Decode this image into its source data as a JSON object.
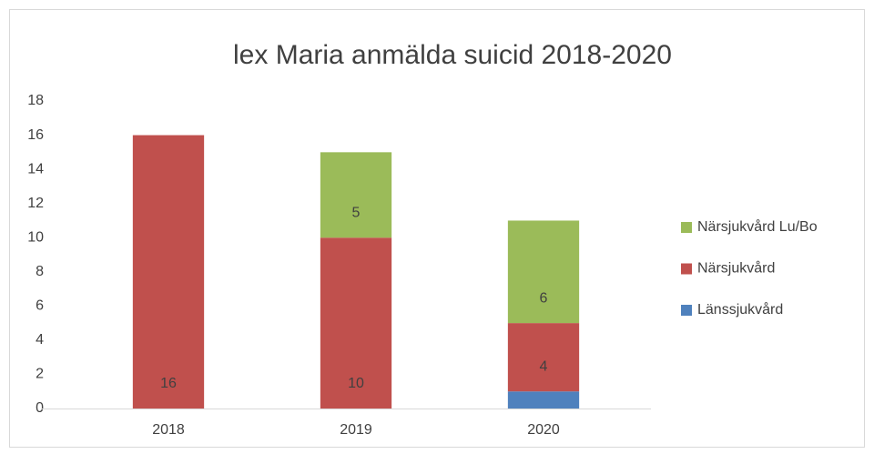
{
  "chart_data": {
    "type": "bar",
    "stacked": true,
    "title": "lex Maria anmälda suicid 2018-2020",
    "categories": [
      "2018",
      "2019",
      "2020"
    ],
    "series": [
      {
        "name": "Länssjukvård",
        "color": "#4f81bd",
        "values": [
          null,
          null,
          1
        ]
      },
      {
        "name": "Närsjukvård",
        "color": "#c0504d",
        "values": [
          16,
          10,
          4
        ]
      },
      {
        "name": "Närsjukvård Lu/Bo",
        "color": "#9bbb59",
        "values": [
          null,
          5,
          6
        ]
      }
    ],
    "ylim": [
      0,
      18
    ],
    "yticks": [
      0,
      2,
      4,
      6,
      8,
      10,
      12,
      14,
      16,
      18
    ],
    "grid": false,
    "legend": "right"
  }
}
